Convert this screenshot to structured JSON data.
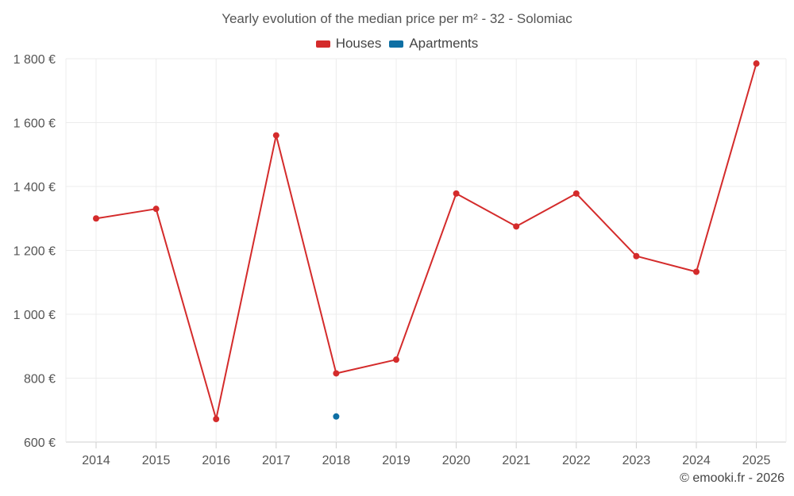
{
  "chart_data": {
    "type": "line",
    "title": "Yearly evolution of the median price per m² - 32 - Solomiac",
    "xlabel": "",
    "ylabel": "",
    "categories": [
      "2014",
      "2015",
      "2016",
      "2017",
      "2018",
      "2019",
      "2020",
      "2021",
      "2022",
      "2023",
      "2024",
      "2025"
    ],
    "ylim": [
      600,
      1800
    ],
    "yticks": [
      600,
      800,
      1000,
      1200,
      1400,
      1600,
      1800
    ],
    "ytick_labels": [
      "600 €",
      "800 €",
      "1 000 €",
      "1 200 €",
      "1 400 €",
      "1 600 €",
      "1 800 €"
    ],
    "grid": true,
    "legend_position": "top-center",
    "series": [
      {
        "name": "Houses",
        "color": "#d42b2b",
        "values": [
          1300,
          1330,
          672,
          1560,
          815,
          858,
          1378,
          1275,
          1378,
          1182,
          1133,
          1785
        ]
      },
      {
        "name": "Apartments",
        "color": "#0e6fa4",
        "values": [
          null,
          null,
          null,
          null,
          680,
          null,
          null,
          null,
          null,
          null,
          null,
          null
        ]
      }
    ]
  },
  "credit": "© emooki.fr - 2026"
}
